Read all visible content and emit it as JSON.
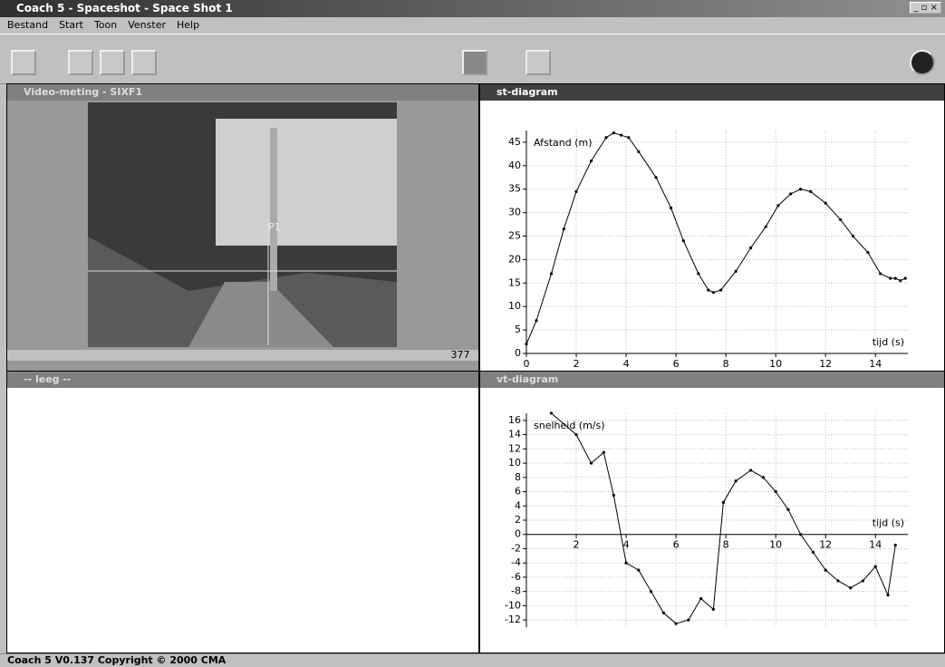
{
  "window": {
    "title": "Coach 5 - Spaceshot - Space Shot 1"
  },
  "menu": [
    "Bestand",
    "Start",
    "Toon",
    "Venster",
    "Help"
  ],
  "panes": {
    "video": {
      "title": "Video-meting - SIXF1",
      "point_label": "P1",
      "frame": "377"
    },
    "empty": {
      "title": "-- leeg --"
    }
  },
  "status": "Coach 5 V0.137 Copyright © 2000 CMA",
  "chart_data": [
    {
      "type": "line",
      "title": "st-diagram",
      "y_label": "Afstand (m)",
      "x_label": "tijd (s)",
      "color": "#000000",
      "grid": true,
      "x": [
        0,
        0.4,
        1,
        1.5,
        2,
        2.6,
        3.2,
        3.5,
        3.8,
        4.1,
        4.5,
        5.2,
        5.8,
        6.3,
        6.9,
        7.3,
        7.5,
        7.8,
        8.4,
        9,
        9.6,
        10.1,
        10.6,
        11,
        11.4,
        12,
        12.6,
        13.1,
        13.7,
        14.2,
        14.6,
        14.8,
        15,
        15.2
      ],
      "values": [
        2,
        7,
        17,
        26.5,
        34.5,
        41,
        46,
        47,
        46.5,
        46,
        43,
        37.5,
        31,
        24,
        17,
        13.5,
        13,
        13.5,
        17.5,
        22.5,
        27,
        31.5,
        34,
        35,
        34.5,
        32,
        28.5,
        25,
        21.5,
        17,
        16,
        16,
        15.5,
        16
      ],
      "xlim": [
        0,
        15.3
      ],
      "ylim": [
        0,
        47.5
      ],
      "xticks": [
        0,
        2,
        4,
        6,
        8,
        10,
        12,
        14
      ],
      "yticks": [
        0,
        5,
        10,
        15,
        20,
        25,
        30,
        35,
        40,
        45
      ]
    },
    {
      "type": "line",
      "title": "vt-diagram",
      "y_label": "snelheid (m/s)",
      "x_label": "tijd (s)",
      "color": "#000000",
      "grid": true,
      "x": [
        1,
        2,
        2.6,
        3.1,
        3.5,
        4,
        4.5,
        5,
        5.5,
        6,
        6.5,
        7,
        7.5,
        7.9,
        8.4,
        9,
        9.5,
        10,
        10.5,
        11,
        11.5,
        12,
        12.5,
        13,
        13.5,
        14,
        14.5,
        14.8
      ],
      "values": [
        17,
        14,
        10,
        11.5,
        5.5,
        -4,
        -5,
        -8,
        -11,
        -12.5,
        -12,
        -9,
        -10.5,
        4.5,
        7.5,
        9,
        8,
        6,
        3.5,
        0,
        -2.5,
        -5,
        -6.5,
        -7.5,
        -6.5,
        -4.5,
        -8.5,
        -1.5
      ],
      "xlim": [
        0,
        15.3
      ],
      "ylim": [
        -13,
        17
      ],
      "xticks": [
        2,
        4,
        6,
        8,
        10,
        12,
        14
      ],
      "yticks": [
        -12,
        -10,
        -8,
        -6,
        -4,
        -2,
        0,
        2,
        4,
        6,
        8,
        10,
        12,
        14,
        16
      ]
    }
  ]
}
